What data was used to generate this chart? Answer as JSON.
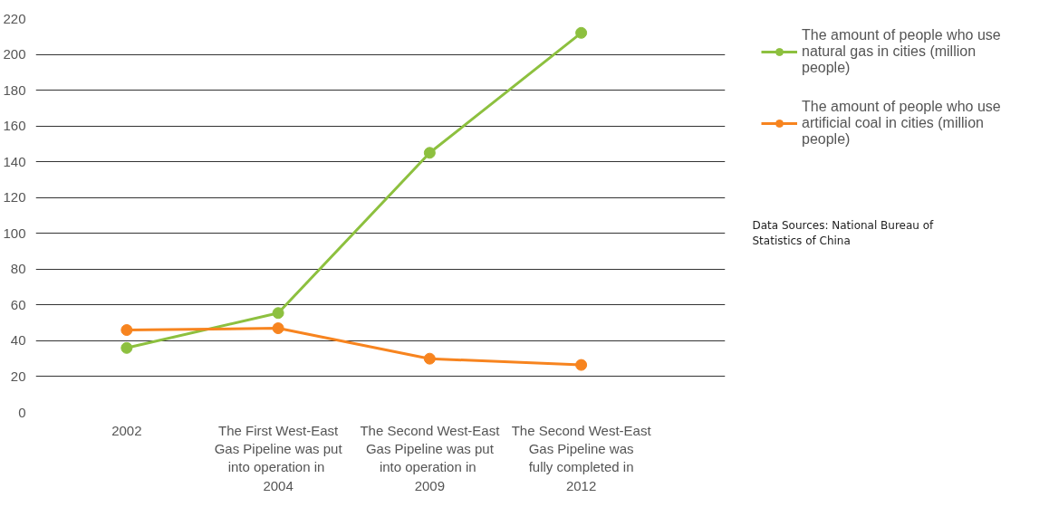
{
  "chart_data": {
    "type": "line",
    "categories": [
      "2002",
      "The First West-East Gas Pipeline was put into  operation in 2004",
      "The Second West-East Gas Pipeline was put into  operation in 2009",
      "The Second West-East Gas Pipeline was fully completed in 2012"
    ],
    "series": [
      {
        "name": "The amount of people who use natural gas in cities (million people)",
        "color": "#8dc03f",
        "values": [
          36,
          55.5,
          145,
          212
        ]
      },
      {
        "name": "The amount of people who use artificial coal in cities (million people)",
        "color": "#f7841f",
        "values": [
          46,
          47,
          30,
          26.5
        ]
      }
    ],
    "ylim": [
      0,
      220
    ],
    "yticks": [
      0,
      20,
      40,
      60,
      80,
      100,
      120,
      140,
      160,
      180,
      200,
      220
    ],
    "grid": "y",
    "legend": "right",
    "marker": "circle",
    "line_style": "solid",
    "annotations": [
      "Data Sources: National Bureau of Statistics of China"
    ]
  }
}
